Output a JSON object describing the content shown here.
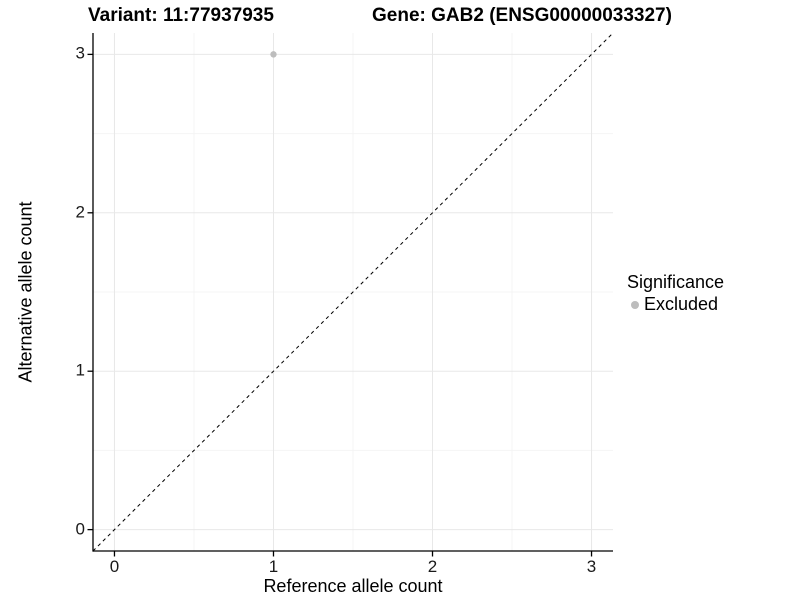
{
  "chart_data": {
    "type": "scatter",
    "title_left": "Variant: 11:77937935",
    "title_right": "Gene: GAB2 (ENSG00000033327)",
    "xlabel": "Reference allele count",
    "ylabel": "Alternative allele count",
    "xlim": [
      -0.135,
      3.135
    ],
    "ylim": [
      -0.135,
      3.135
    ],
    "x_ticks": [
      "0",
      "1",
      "2",
      "3"
    ],
    "x_tick_values": [
      0,
      1,
      2,
      3
    ],
    "y_ticks": [
      "0",
      "1",
      "2",
      "3"
    ],
    "y_tick_values": [
      0,
      1,
      2,
      3
    ],
    "minor_tick_values": [
      0.5,
      1.5,
      2.5
    ],
    "grid": true,
    "series": [
      {
        "name": "Excluded",
        "color": "#bdbdbd",
        "points": [
          {
            "x": 1,
            "y": 3
          }
        ]
      }
    ],
    "reference_line": {
      "equation": "y = x",
      "style": "dashed",
      "color": "#000000"
    },
    "legend_position": "right"
  },
  "legend": {
    "title": "Significance"
  },
  "colors": {
    "background": "#ffffff",
    "grid_major": "#e8e8e8",
    "grid_minor": "#f4f4f4",
    "axis_line": "#000000",
    "point": "#bdbdbd"
  }
}
